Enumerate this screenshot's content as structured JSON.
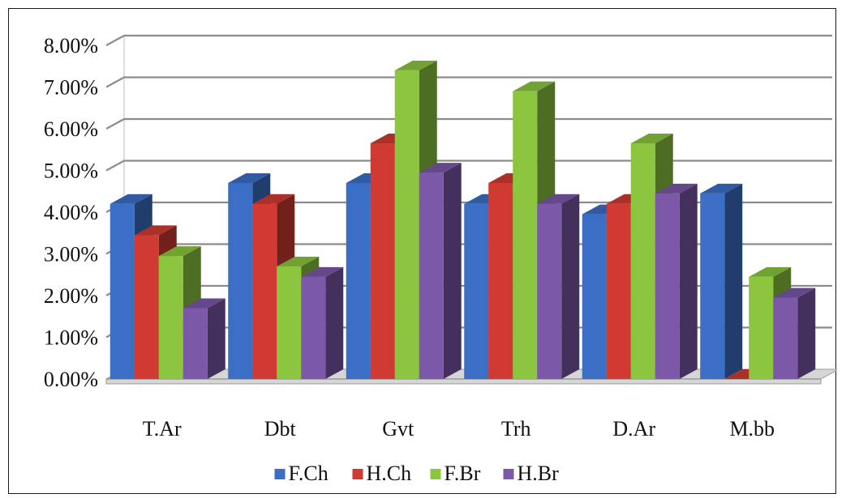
{
  "chart_data": {
    "type": "bar",
    "title": "",
    "xlabel": "",
    "ylabel": "",
    "categories": [
      "T.Ar",
      "Dbt",
      "Gvt",
      "Trh",
      "D.Ar",
      "M.bb"
    ],
    "series": [
      {
        "name": "F.Ch",
        "color": "#3b6fc6",
        "values": [
          0.042,
          0.047,
          0.047,
          0.042,
          0.0395,
          0.0445
        ]
      },
      {
        "name": "H.Ch",
        "color": "#d03a33",
        "values": [
          0.0345,
          0.042,
          0.0565,
          0.047,
          0.042,
          0.0
        ]
      },
      {
        "name": "F.Br",
        "color": "#8cc63f",
        "values": [
          0.0295,
          0.027,
          0.074,
          0.069,
          0.0565,
          0.0245
        ]
      },
      {
        "name": "H.Br",
        "color": "#7b58a8",
        "values": [
          0.017,
          0.0245,
          0.0495,
          0.042,
          0.0445,
          0.0195
        ]
      }
    ],
    "ylim": [
      0,
      0.08
    ],
    "yticks": [
      "0.00%",
      "1.00%",
      "2.00%",
      "3.00%",
      "4.00%",
      "5.00%",
      "6.00%",
      "7.00%",
      "8.00%"
    ],
    "grid": true,
    "legend_position": "bottom",
    "style": "3d-clustered-column"
  }
}
